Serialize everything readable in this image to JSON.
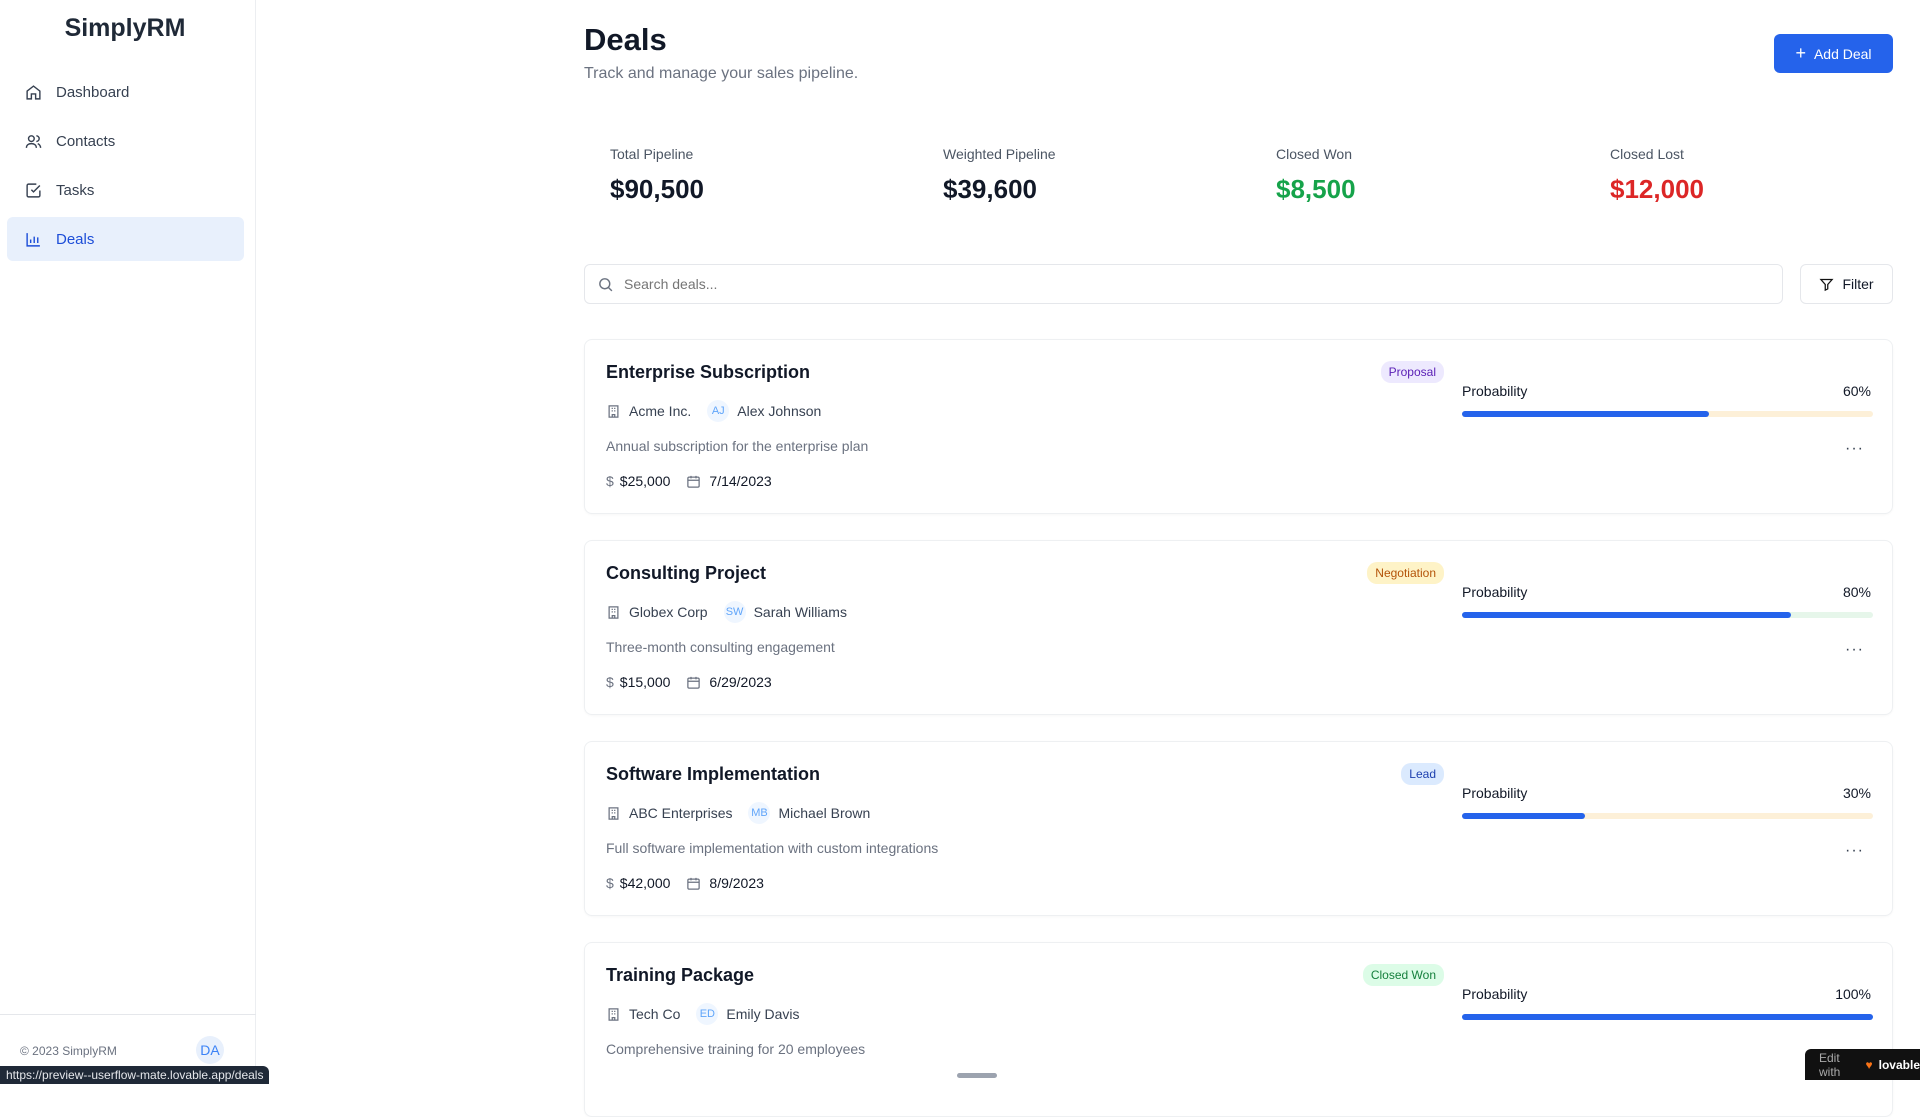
{
  "app": {
    "name": "SimplyRM",
    "copyright": "© 2023 SimplyRM",
    "user_initials": "DA",
    "status_url": "https://preview--userflow-mate.lovable.app/deals",
    "edit_badge": "Edit with",
    "edit_brand": "lovable"
  },
  "sidebar": {
    "items": [
      {
        "label": "Dashboard",
        "icon": "home-icon"
      },
      {
        "label": "Contacts",
        "icon": "users-icon"
      },
      {
        "label": "Tasks",
        "icon": "check-square-icon"
      },
      {
        "label": "Deals",
        "icon": "bar-chart-icon",
        "active": true
      }
    ]
  },
  "header": {
    "title": "Deals",
    "subtitle": "Track and manage your sales pipeline.",
    "add_label": "Add Deal"
  },
  "stats": [
    {
      "label": "Total Pipeline",
      "value": "$90,500",
      "color": "#111827"
    },
    {
      "label": "Weighted Pipeline",
      "value": "$39,600",
      "color": "#111827"
    },
    {
      "label": "Closed Won",
      "value": "$8,500",
      "color": "#16a34a"
    },
    {
      "label": "Closed Lost",
      "value": "$12,000",
      "color": "#dc2626"
    }
  ],
  "search": {
    "placeholder": "Search deals...",
    "filter_label": "Filter"
  },
  "probability_label": "Probability",
  "deals": [
    {
      "title": "Enterprise Subscription",
      "stage": "Proposal",
      "company": "Acme Inc.",
      "initials": "AJ",
      "contact": "Alex Johnson",
      "description": "Annual subscription for the enterprise plan",
      "amount": "$25,000",
      "date": "7/14/2023",
      "probability": 60,
      "probability_text": "60%"
    },
    {
      "title": "Consulting Project",
      "stage": "Negotiation",
      "company": "Globex Corp",
      "initials": "SW",
      "contact": "Sarah Williams",
      "description": "Three-month consulting engagement",
      "amount": "$15,000",
      "date": "6/29/2023",
      "probability": 80,
      "probability_text": "80%"
    },
    {
      "title": "Software Implementation",
      "stage": "Lead",
      "company": "ABC Enterprises",
      "initials": "MB",
      "contact": "Michael Brown",
      "description": "Full software implementation with custom integrations",
      "amount": "$42,000",
      "date": "8/9/2023",
      "probability": 30,
      "probability_text": "30%"
    },
    {
      "title": "Training Package",
      "stage": "Closed Won",
      "company": "Tech Co",
      "initials": "ED",
      "contact": "Emily Davis",
      "description": "Comprehensive training for 20 employees",
      "amount": "",
      "date": "",
      "probability": 100,
      "probability_text": "100%"
    }
  ],
  "stage_colors": {
    "Proposal": [
      "#ede9fe",
      "#5b21b6"
    ],
    "Negotiation": [
      "#fef3c7",
      "#b45309"
    ],
    "Lead": [
      "#dbeafe",
      "#1e40af"
    ],
    "Closed Won": [
      "#dcfce7",
      "#15803d"
    ]
  },
  "track_colors": {
    "Proposal": "#fdf0d8",
    "Negotiation": "#e6f6ea",
    "Lead": "#fdf0d8",
    "Closed Won": "#e6f6ea"
  }
}
